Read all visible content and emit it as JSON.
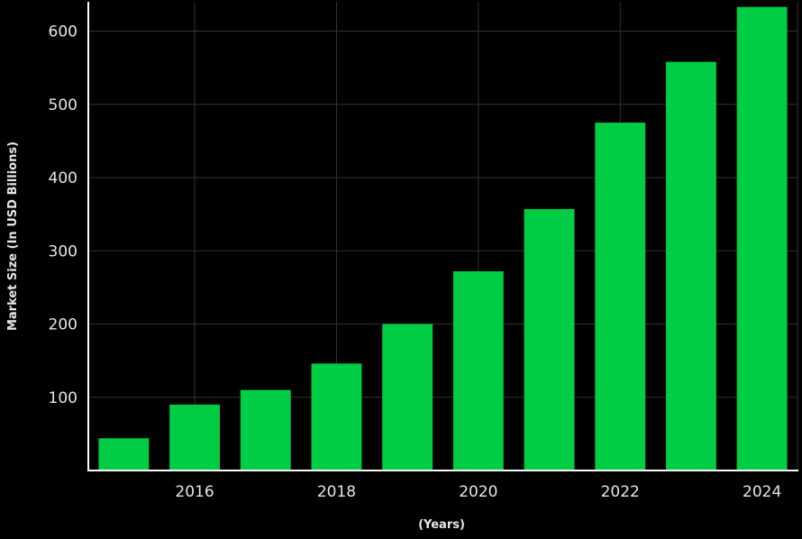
{
  "chart_data": {
    "type": "bar",
    "title": "",
    "xlabel": "(Years)",
    "ylabel": "Market Size (In USD Billions)",
    "categories": [
      "2015",
      "2016",
      "2017",
      "2018",
      "2019",
      "2020",
      "2021",
      "2022",
      "2023",
      "2024"
    ],
    "values": [
      44,
      90,
      110,
      146,
      200,
      272,
      357,
      475,
      558,
      633
    ],
    "x_tick_labels": [
      "2016",
      "2018",
      "2020",
      "2022",
      "2024"
    ],
    "y_ticks": [
      100,
      200,
      300,
      400,
      500,
      600
    ],
    "ylim": [
      0,
      640
    ],
    "grid": true,
    "legend": "none",
    "colors": {
      "background": "#000000",
      "bar": "#00cc44",
      "grid": "#333333",
      "axis": "#ffffff",
      "text": "#e6e6e6"
    }
  }
}
